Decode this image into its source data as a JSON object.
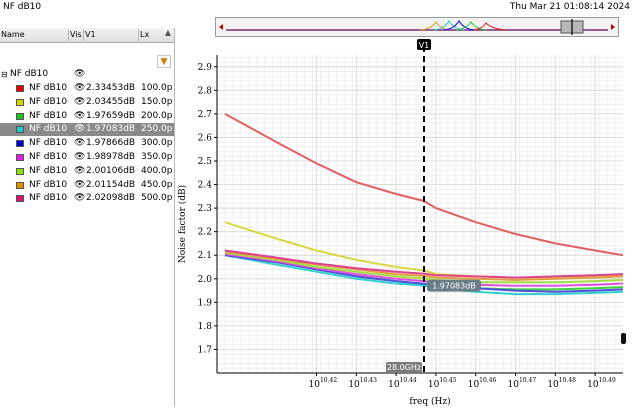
{
  "window": {
    "title": "NF dB10",
    "datetime": "Thu Mar 21 01:08:14 2024"
  },
  "table": {
    "columns": [
      "Name",
      "Vis",
      "V1",
      "Lx"
    ],
    "root": {
      "name": "NF dB10"
    },
    "rows": [
      {
        "name": "NF dB10",
        "v1": "2.33453dB",
        "lx": "100.0p",
        "color": "#e00000",
        "selected": false
      },
      {
        "name": "NF dB10",
        "v1": "2.03455dB",
        "lx": "150.0p",
        "color": "#d8d000",
        "selected": false
      },
      {
        "name": "NF dB10",
        "v1": "1.97659dB",
        "lx": "200.0p",
        "color": "#20c020",
        "selected": false
      },
      {
        "name": "NF dB10",
        "v1": "1.97083dB",
        "lx": "250.0p",
        "color": "#20c8c8",
        "selected": true
      },
      {
        "name": "NF dB10",
        "v1": "1.97866dB",
        "lx": "300.0p",
        "color": "#0000d0",
        "selected": false
      },
      {
        "name": "NF dB10",
        "v1": "1.98978dB",
        "lx": "350.0p",
        "color": "#e020e0",
        "selected": false
      },
      {
        "name": "NF dB10",
        "v1": "2.00106dB",
        "lx": "400.0p",
        "color": "#90e000",
        "selected": false
      },
      {
        "name": "NF dB10",
        "v1": "2.01154dB",
        "lx": "450.0p",
        "color": "#e09000",
        "selected": false
      },
      {
        "name": "NF dB10",
        "v1": "2.02098dB",
        "lx": "500.0p",
        "color": "#e01070",
        "selected": false
      }
    ]
  },
  "marker": {
    "name": "V1",
    "x_label": "28.0GHz",
    "value_label": "1.97083dB"
  },
  "chart_data": {
    "type": "line",
    "xlabel": "freq (Hz)",
    "ylabel": "Noise factor (dB)",
    "xscale": "log",
    "xlim_exp": [
      10.395,
      10.497
    ],
    "ylim": [
      1.6,
      2.95
    ],
    "x_ticks": [
      {
        "base": "10",
        "exp": "10.42",
        "v": 10.42
      },
      {
        "base": "10",
        "exp": "10.43",
        "v": 10.43
      },
      {
        "base": "10",
        "exp": "10.44",
        "v": 10.44
      },
      {
        "base": "10",
        "exp": "10.45",
        "v": 10.45
      },
      {
        "base": "10",
        "exp": "10.46",
        "v": 10.46
      },
      {
        "base": "10",
        "exp": "10.47",
        "v": 10.47
      },
      {
        "base": "10",
        "exp": "10.48",
        "v": 10.48
      },
      {
        "base": "10",
        "exp": "10.49",
        "v": 10.49
      }
    ],
    "y_ticks": [
      {
        "label": "1.7",
        "v": 1.7
      },
      {
        "label": "1.8",
        "v": 1.8
      },
      {
        "label": "1.9",
        "v": 1.9
      },
      {
        "label": "2.0",
        "v": 2.0
      },
      {
        "label": "2.1",
        "v": 2.1
      },
      {
        "label": "2.2",
        "v": 2.2
      },
      {
        "label": "2.3",
        "v": 2.3
      },
      {
        "label": "2.4",
        "v": 2.4
      },
      {
        "label": "2.5",
        "v": 2.5
      },
      {
        "label": "2.6",
        "v": 2.6
      },
      {
        "label": "2.7",
        "v": 2.7
      },
      {
        "label": "2.8",
        "v": 2.8
      },
      {
        "label": "2.9",
        "v": 2.9
      }
    ],
    "x": [
      10.397,
      10.41,
      10.42,
      10.43,
      10.44,
      10.447,
      10.45,
      10.46,
      10.47,
      10.48,
      10.49,
      10.497
    ],
    "series": [
      {
        "color": "#e06060",
        "values": [
          2.7,
          2.58,
          2.49,
          2.41,
          2.36,
          2.33,
          2.3,
          2.24,
          2.19,
          2.15,
          2.12,
          2.1
        ]
      },
      {
        "color": "#d8d840",
        "values": [
          2.24,
          2.17,
          2.12,
          2.08,
          2.05,
          2.035,
          2.02,
          2.01,
          2.005,
          2.005,
          2.01,
          2.015
        ]
      },
      {
        "color": "#40d040",
        "values": [
          2.12,
          2.08,
          2.04,
          2.01,
          1.99,
          1.977,
          1.97,
          1.96,
          1.955,
          1.955,
          1.96,
          1.965
        ]
      },
      {
        "color": "#30d0d0",
        "values": [
          2.1,
          2.06,
          2.03,
          2.0,
          1.98,
          1.971,
          1.96,
          1.945,
          1.935,
          1.935,
          1.94,
          1.945
        ]
      },
      {
        "color": "#5050e0",
        "values": [
          2.1,
          2.07,
          2.04,
          2.01,
          1.99,
          1.979,
          1.97,
          1.96,
          1.95,
          1.945,
          1.95,
          1.955
        ]
      },
      {
        "color": "#e050e0",
        "values": [
          2.105,
          2.075,
          2.045,
          2.02,
          2.0,
          1.99,
          1.985,
          1.975,
          1.97,
          1.97,
          1.975,
          1.98
        ]
      },
      {
        "color": "#a0e040",
        "values": [
          2.11,
          2.08,
          2.05,
          2.03,
          2.01,
          2.001,
          1.995,
          1.985,
          1.985,
          1.985,
          1.99,
          1.995
        ]
      },
      {
        "color": "#e0a040",
        "values": [
          2.115,
          2.085,
          2.06,
          2.04,
          2.02,
          2.012,
          2.005,
          2.0,
          1.995,
          2.0,
          2.005,
          2.01
        ]
      },
      {
        "color": "#e04090",
        "values": [
          2.12,
          2.09,
          2.065,
          2.045,
          2.03,
          2.021,
          2.015,
          2.01,
          2.005,
          2.01,
          2.015,
          2.02
        ]
      }
    ],
    "marker_x": 10.447,
    "marker_y": 1.97083,
    "grid": true,
    "legend": "none"
  }
}
